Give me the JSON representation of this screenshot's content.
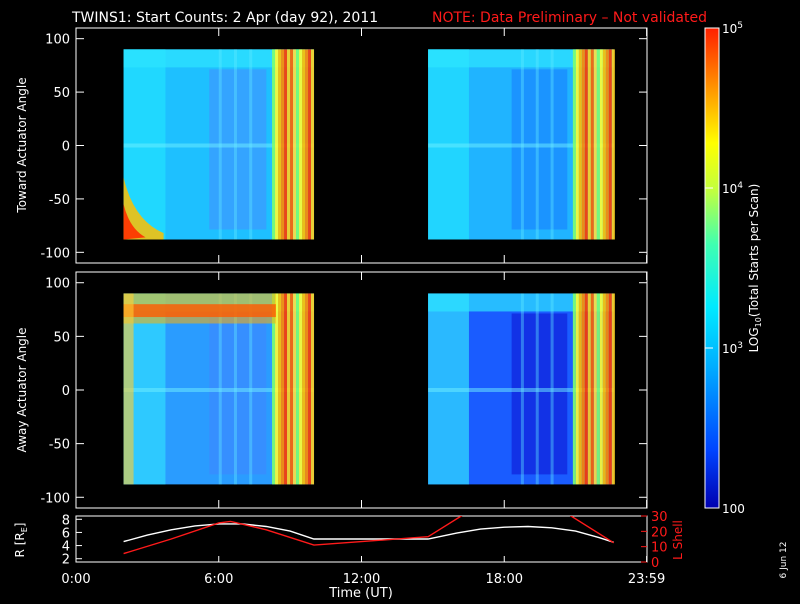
{
  "header": {
    "title": "TWINS1: Start Counts:  2 Apr (day  92), 2011",
    "note": "NOTE: Data Preliminary – Not validated",
    "note_color": "#ff1a1a"
  },
  "footer": {
    "date_stamp": "6 Jun 12"
  },
  "chart_data": [
    {
      "type": "heatmap",
      "ylabel": "Toward Actuator Angle",
      "xlabel": "",
      "xlim": [
        0,
        24
      ],
      "ylim": [
        -110,
        110
      ],
      "yticks": [
        100,
        50,
        0,
        -50,
        -100
      ],
      "data_intervals_hours": [
        [
          2.0,
          10.0
        ],
        [
          14.8,
          22.6
        ]
      ],
      "angle_range": [
        -88,
        90
      ],
      "levels_hint": "mostly cyan/light-blue (~1000 counts), orange/red near interval edges"
    },
    {
      "type": "heatmap",
      "ylabel": "Away Actuator Angle",
      "xlabel": "",
      "xlim": [
        0,
        24
      ],
      "ylim": [
        -110,
        110
      ],
      "yticks": [
        100,
        50,
        0,
        -50,
        -100
      ],
      "data_intervals_hours": [
        [
          2.0,
          10.0
        ],
        [
          14.8,
          22.6
        ]
      ],
      "angle_range": [
        -88,
        90
      ],
      "levels_hint": "orange band near +75 deg in first interval; deep blue (~200-300 counts) in second interval"
    },
    {
      "type": "line",
      "xlabel": "Time (UT)",
      "xlim": [
        0,
        24
      ],
      "x_tick_labels": [
        "0:00",
        "6:00",
        "12:00",
        "18:00",
        "23:59"
      ],
      "x_tick_hours": [
        0,
        6,
        12,
        18,
        23.983
      ],
      "left_axis": {
        "label": "R [R",
        "label_sub": "E",
        "label_end": "]",
        "ylim": [
          1.5,
          8.5
        ],
        "ticks": [
          2,
          4,
          6,
          8
        ],
        "color": "#ffffff"
      },
      "right_axis": {
        "label": "L Shell",
        "ylim": [
          0,
          30
        ],
        "ticks": [
          0,
          10,
          20,
          30
        ],
        "color": "#ff1a1a"
      },
      "series": [
        {
          "axis": "left",
          "color": "#ffffff",
          "x": [
            2.0,
            3.0,
            4.0,
            5.0,
            6.0,
            7.0,
            8.0,
            9.0,
            10.0,
            14.8,
            16.0,
            17.0,
            18.0,
            19.0,
            20.0,
            21.0,
            22.0,
            22.6
          ],
          "y": [
            4.6,
            5.6,
            6.4,
            7.0,
            7.3,
            7.3,
            6.9,
            6.2,
            5.0,
            5.0,
            5.9,
            6.5,
            6.8,
            6.9,
            6.7,
            6.2,
            5.2,
            4.5
          ]
        },
        {
          "axis": "right",
          "color": "#ff1a1a",
          "x": [
            2.0,
            4.0,
            6.0,
            6.5,
            8.0,
            10.0,
            14.8,
            16.5,
            20.5,
            22.6
          ],
          "y": [
            5.5,
            15.0,
            25.5,
            26.5,
            21.0,
            11.0,
            16.5,
            33.0,
            33.0,
            12.5
          ]
        }
      ]
    },
    {
      "type": "colorbar",
      "scale": "log",
      "range": [
        100,
        100000
      ],
      "label": "LOG",
      "label_sub": "10",
      "label_end": "(Total Starts per Scan)",
      "tick_labels": [
        {
          "value": 100000,
          "base": "10",
          "exp": "5"
        },
        {
          "value": 10000,
          "base": "10",
          "exp": "4"
        },
        {
          "value": 1000,
          "base": "10",
          "exp": "3"
        },
        {
          "value": 100,
          "base": "100",
          "exp": ""
        }
      ],
      "colors": [
        "#0000b0",
        "#0044ff",
        "#00b0ff",
        "#00eaff",
        "#40ffb0",
        "#c0ff40",
        "#ffff00",
        "#ff9000",
        "#ff2000"
      ]
    }
  ]
}
